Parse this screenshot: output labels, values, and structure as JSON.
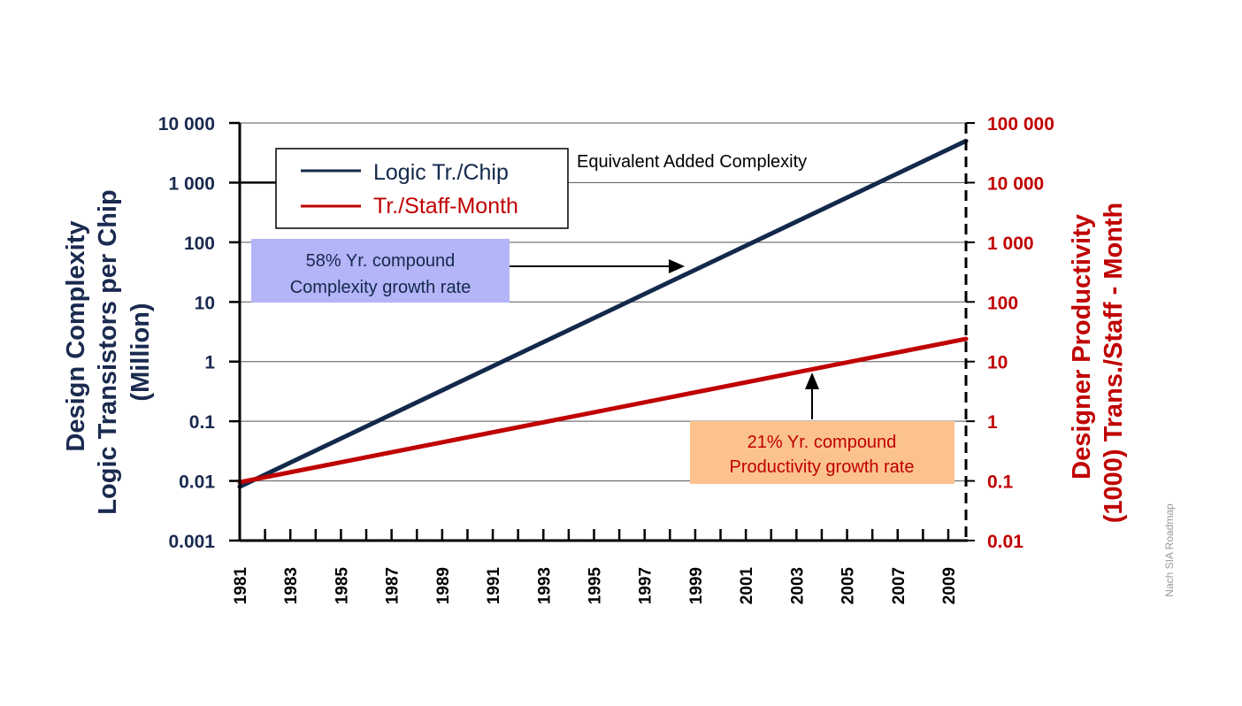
{
  "chart_data": {
    "type": "line",
    "x": [
      1981,
      2009.7
    ],
    "x_ticks": [
      "1981",
      "1983",
      "1985",
      "1987",
      "1989",
      "1991",
      "1993",
      "1995",
      "1997",
      "1999",
      "2001",
      "2003",
      "2005",
      "2007",
      "2009"
    ],
    "xlim": [
      1981,
      2009.7
    ],
    "y_left": {
      "label_lines": [
        "Design Complexity",
        "Logic Transistors per Chip",
        "(Million)"
      ],
      "scale": "log",
      "ylim": [
        0.001,
        10000
      ],
      "tick_values": [
        0.001,
        0.01,
        0.1,
        1,
        10,
        100,
        1000,
        10000
      ],
      "tick_labels": [
        "0.001",
        "0.01",
        "0.1",
        "1",
        "10",
        "100",
        "1 000",
        "10 000"
      ]
    },
    "y_right": {
      "label_lines": [
        "Designer Productivity",
        "(1000) Trans./Staff - Month"
      ],
      "scale": "log",
      "ylim": [
        0.01,
        100000
      ],
      "tick_values": [
        0.01,
        0.1,
        1,
        10,
        100,
        1000,
        10000,
        100000
      ],
      "tick_labels": [
        "0.01",
        "0.1",
        "1",
        "10",
        "100",
        "1 000",
        "10 000",
        "100 000"
      ]
    },
    "series": [
      {
        "name": "Logic Tr./Chip",
        "axis": "left",
        "color": "#13294b",
        "x": [
          1981,
          2009.7
        ],
        "values": [
          0.008,
          5000
        ]
      },
      {
        "name": "Tr./Staff-Month",
        "axis": "right",
        "color": "#c00000",
        "x": [
          1981,
          2009.7
        ],
        "values": [
          0.095,
          24
        ]
      }
    ],
    "legend": {
      "placement": "top-left"
    },
    "grid": {
      "horizontal": true
    },
    "annotations": {
      "equivalent": "Equivalent Added Complexity",
      "complexity_rate_lines": [
        "58% Yr. compound",
        "Complexity growth rate"
      ],
      "productivity_rate_lines": [
        "21% Yr. compound",
        "Productivity growth rate"
      ]
    },
    "colors": {
      "complexity_box": "#b4b4f8",
      "productivity_box": "#fbc28e",
      "left_axis_text": "#1a2a4f",
      "right_axis_text": "#c00000"
    },
    "source": "Nach  SIA Roadmap"
  }
}
